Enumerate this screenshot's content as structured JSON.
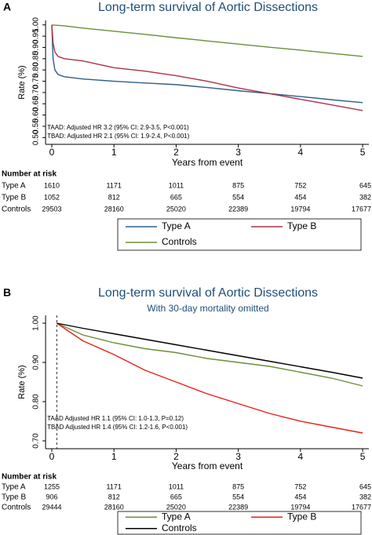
{
  "chart_data": [
    {
      "type": "line",
      "panel_label": "A",
      "title": "Long-term survival of Aortic Dissections",
      "y_label": "Rate (%)",
      "x_label": "Years from event",
      "x": [
        0,
        0.02,
        0.05,
        0.1,
        0.2,
        0.5,
        1,
        1.5,
        2,
        2.5,
        3,
        3.5,
        4,
        4.5,
        5
      ],
      "series": [
        {
          "name": "Type A",
          "color": "#2f5d8a",
          "values": [
            1.0,
            0.85,
            0.8,
            0.78,
            0.77,
            0.76,
            0.75,
            0.742,
            0.735,
            0.722,
            0.708,
            0.695,
            0.682,
            0.668,
            0.655
          ]
        },
        {
          "name": "Type B",
          "color": "#a8334a",
          "values": [
            1.0,
            0.92,
            0.88,
            0.86,
            0.85,
            0.84,
            0.81,
            0.795,
            0.775,
            0.75,
            0.72,
            0.695,
            0.67,
            0.645,
            0.62
          ]
        },
        {
          "name": "Controls",
          "color": "#6a8f3a",
          "values": [
            1.0,
            0.999,
            0.999,
            0.998,
            0.996,
            0.986,
            0.972,
            0.958,
            0.943,
            0.929,
            0.915,
            0.901,
            0.888,
            0.874,
            0.86
          ]
        }
      ],
      "xlim": [
        -0.1,
        5.1
      ],
      "xticks": [
        0,
        1,
        2,
        3,
        4,
        5
      ],
      "ylim": [
        0.47,
        1.02
      ],
      "yticks": [
        {
          "value": 0.5,
          "label": "0.50"
        },
        0.55,
        {
          "value": 0.6,
          "label": "0.60"
        },
        0.65,
        {
          "value": 0.7,
          "label": "0.70"
        },
        0.75,
        {
          "value": 0.8,
          "label": "0.80"
        },
        0.85,
        {
          "value": 0.9,
          "label": "0.90"
        },
        0.95,
        {
          "value": 1.0,
          "label": "1.00"
        }
      ],
      "annotations": [
        "TAAD: Adjusted HR 3.2 (95% CI: 2.9-3.5, P<0.001)",
        "TBAD: Adjusted HR 2.1 (95% CI: 1.9-2.4, P<0.001)"
      ],
      "risk_table": {
        "title": "Number at risk",
        "rows": [
          {
            "label": "Type A",
            "values": [
              1610,
              1171,
              1011,
              875,
              752,
              645
            ]
          },
          {
            "label": "Type B",
            "values": [
              1052,
              812,
              665,
              554,
              454,
              382
            ]
          },
          {
            "label": "Controls",
            "values": [
              29503,
              28160,
              25020,
              22389,
              19794,
              17677
            ]
          }
        ]
      }
    },
    {
      "type": "line",
      "panel_label": "B",
      "title": "Long-term survival of Aortic Dissections",
      "subtitle": "With 30-day mortality omitted",
      "y_label": "Rate (%)",
      "x_label": "Years from event",
      "x": [
        0.08,
        0.5,
        1,
        1.5,
        2,
        2.5,
        3,
        3.5,
        4,
        4.5,
        5
      ],
      "series": [
        {
          "name": "Type A",
          "color": "#6b8e3a",
          "values": [
            1.0,
            0.97,
            0.95,
            0.935,
            0.925,
            0.91,
            0.9,
            0.89,
            0.875,
            0.86,
            0.84
          ]
        },
        {
          "name": "Type B",
          "color": "#e8221a",
          "values": [
            1.0,
            0.955,
            0.92,
            0.88,
            0.85,
            0.82,
            0.795,
            0.77,
            0.75,
            0.735,
            0.72
          ]
        },
        {
          "name": "Controls",
          "color": "#000000",
          "values": [
            1.0,
            0.987,
            0.973,
            0.959,
            0.945,
            0.931,
            0.917,
            0.903,
            0.889,
            0.875,
            0.86
          ]
        }
      ],
      "vline": 0.08,
      "xlim": [
        -0.1,
        5.1
      ],
      "xticks": [
        0,
        1,
        2,
        3,
        4,
        5
      ],
      "ylim": [
        0.68,
        1.02
      ],
      "yticks": [
        {
          "value": 0.7,
          "label": "0.70"
        },
        {
          "value": 0.8,
          "label": "0.80"
        },
        {
          "value": 0.9,
          "label": "0.90"
        },
        {
          "value": 1.0,
          "label": "1.00"
        }
      ],
      "annotations": [
        "TAAD Adjusted HR 1.1 (95% CI: 1.0-1.3, P=0.12)",
        "TBAD Adjusted HR 1.4 (95% CI: 1.2-1.6, P<0.001)"
      ],
      "risk_table": {
        "title": "Number at risk",
        "rows": [
          {
            "label": "Type A",
            "values": [
              1255,
              1171,
              1011,
              875,
              752,
              645
            ]
          },
          {
            "label": "Type B",
            "values": [
              906,
              812,
              665,
              554,
              454,
              382
            ]
          },
          {
            "label": "Controls",
            "values": [
              29444,
              28160,
              25020,
              22389,
              19794,
              17677
            ]
          }
        ]
      }
    }
  ]
}
